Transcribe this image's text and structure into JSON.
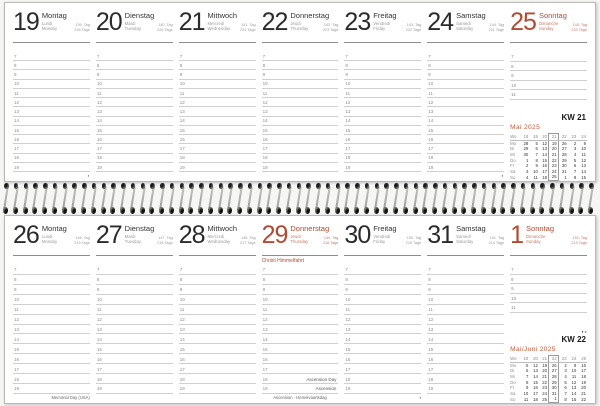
{
  "accent": "#b3492f",
  "accent_light": "#c05b38",
  "line_color": "#cfcfcf",
  "spiral_color": "#1c1c1c",
  "hours": [
    "7",
    "8",
    "9",
    "10",
    "11",
    "12",
    "13",
    "14",
    "15",
    "16",
    "17",
    "18",
    "19"
  ],
  "pages": [
    {
      "name": "week-21",
      "kw_label": "KW 21",
      "pre_kw_icons": "",
      "minical": {
        "title": "Mai 2025",
        "col_head": [
          "Wo",
          "18",
          "19",
          "20",
          "21",
          "22",
          "23",
          "24"
        ],
        "rows": [
          [
            "Mo",
            "28",
            "5",
            "12",
            "19",
            "26",
            "2",
            "9"
          ],
          [
            "Di",
            "29",
            "6",
            "13",
            "20",
            "27",
            "3",
            "10"
          ],
          [
            "Mi",
            "30",
            "7",
            "14",
            "21",
            "28",
            "4",
            "11"
          ],
          [
            "Do",
            "1",
            "8",
            "15",
            "22",
            "29",
            "5",
            "12"
          ],
          [
            "Fr",
            "2",
            "9",
            "16",
            "23",
            "30",
            "6",
            "13"
          ],
          [
            "Sa",
            "3",
            "10",
            "17",
            "24",
            "31",
            "7",
            "14"
          ],
          [
            "So",
            "4",
            "11",
            "18",
            "25",
            "1",
            "8",
            "15"
          ]
        ],
        "highlight_col": 4
      },
      "days": [
        {
          "num": "19",
          "de": "Montag",
          "fr": "Lundi",
          "en": "Monday",
          "info1": "139. Tag",
          "info2": "226 Tage",
          "red": false,
          "bottom_note": "◐",
          "bottom_align": "right"
        },
        {
          "num": "20",
          "de": "Dienstag",
          "fr": "Mardi",
          "en": "Tuesday",
          "info1": "140. Tag",
          "info2": "225 Tage",
          "red": false
        },
        {
          "num": "21",
          "de": "Mittwoch",
          "fr": "Mercredi",
          "en": "Wednesday",
          "info1": "141. Tag",
          "info2": "224 Tage",
          "red": false
        },
        {
          "num": "22",
          "de": "Donnerstag",
          "fr": "Jeudi",
          "en": "Thursday",
          "info1": "142. Tag",
          "info2": "223 Tage",
          "red": false
        },
        {
          "num": "23",
          "de": "Freitag",
          "fr": "Vendredi",
          "en": "Friday",
          "info1": "143. Tag",
          "info2": "222 Tage",
          "red": false
        },
        {
          "num": "24",
          "de": "Samstag",
          "fr": "Samedi",
          "en": "Saturday",
          "info1": "144. Tag",
          "info2": "221 Tage",
          "red": false,
          "bottom_note": "◐",
          "bottom_align": "right"
        },
        {
          "num": "25",
          "de": "Sonntag",
          "fr": "Dimanche",
          "en": "Sunday",
          "info1": "145. Tag",
          "info2": "220 Tage",
          "red": true,
          "special": true
        }
      ]
    },
    {
      "name": "week-22",
      "kw_label": "KW 22",
      "pre_kw_icons": "◐◒",
      "minical": {
        "title": "Mai/Juni 2025",
        "col_head": [
          "Wo",
          "19",
          "20",
          "21",
          "22",
          "23",
          "24",
          "25"
        ],
        "rows": [
          [
            "Mo",
            "5",
            "12",
            "19",
            "26",
            "2",
            "9",
            "16"
          ],
          [
            "Di",
            "6",
            "13",
            "20",
            "27",
            "3",
            "10",
            "17"
          ],
          [
            "Mi",
            "7",
            "14",
            "21",
            "28",
            "4",
            "11",
            "18"
          ],
          [
            "Do",
            "8",
            "15",
            "22",
            "29",
            "5",
            "12",
            "19"
          ],
          [
            "Fr",
            "9",
            "16",
            "23",
            "30",
            "6",
            "13",
            "20"
          ],
          [
            "Sa",
            "10",
            "17",
            "24",
            "31",
            "7",
            "14",
            "21"
          ],
          [
            "So",
            "11",
            "18",
            "25",
            "1",
            "8",
            "15",
            "22"
          ]
        ],
        "highlight_col": 4
      },
      "days": [
        {
          "num": "26",
          "de": "Montag",
          "fr": "Lundi",
          "en": "Monday",
          "info1": "146. Tag",
          "info2": "219 Tage",
          "red": false,
          "bottom_note": "Memorial Day (USA)",
          "bottom_align": "right"
        },
        {
          "num": "27",
          "de": "Dienstag",
          "fr": "Mardi",
          "en": "Tuesday",
          "info1": "147. Tag",
          "info2": "218 Tage",
          "red": false
        },
        {
          "num": "28",
          "de": "Mittwoch",
          "fr": "Mercredi",
          "en": "Wednesday",
          "info1": "148. Tag",
          "info2": "217 Tage",
          "red": false
        },
        {
          "num": "29",
          "de": "Donnerstag",
          "fr": "Jeudi",
          "en": "Thursday",
          "info1": "149. Tag",
          "info2": "216 Tage",
          "red": true,
          "holiday": "Christi Himmelfahrt",
          "row_notes": {
            "11": "Ascension Day",
            "12": "Ascension"
          },
          "bottom_note": "Ascension · Hemelvaartsdag",
          "bottom_align": "center"
        },
        {
          "num": "30",
          "de": "Freitag",
          "fr": "Vendredi",
          "en": "Friday",
          "info1": "150. Tag",
          "info2": "215 Tage",
          "red": false,
          "bottom_note": "◑",
          "bottom_align": "right"
        },
        {
          "num": "31",
          "de": "Samstag",
          "fr": "Samedi",
          "en": "Saturday",
          "info1": "151. Tag",
          "info2": "214 Tage",
          "red": false
        },
        {
          "num": "1",
          "de": "Sonntag",
          "fr": "Dimanche",
          "en": "Sunday",
          "info1": "152. Tag",
          "info2": "213 Tage",
          "red": true,
          "special": true
        }
      ]
    }
  ]
}
